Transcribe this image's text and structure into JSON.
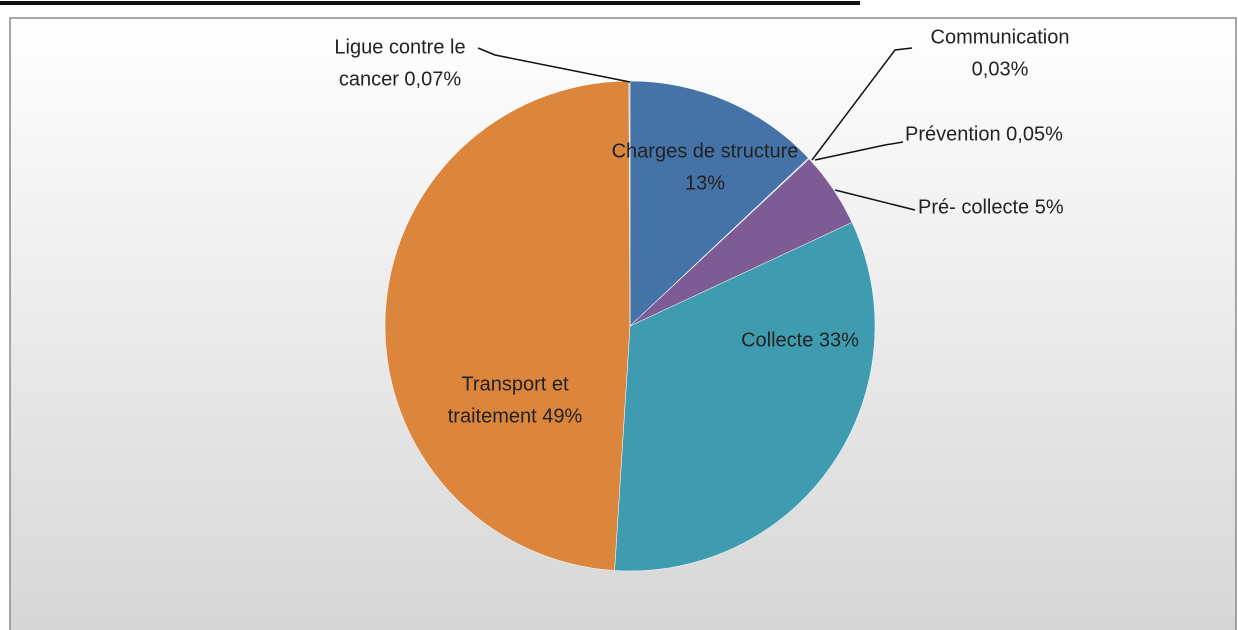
{
  "chart_data": {
    "type": "pie",
    "categories": [
      "Charges de structure",
      "Communication",
      "Prévention",
      "Pré- collecte",
      "Collecte",
      "Transport et traitement",
      "Ligue contre le cancer"
    ],
    "values": [
      13,
      0.03,
      0.05,
      5,
      33,
      49,
      0.07
    ],
    "value_labels": [
      "13%",
      "0,03%",
      "0,05%",
      "5%",
      "33%",
      "49%",
      "0,07%"
    ],
    "colors": [
      "#4572a7",
      "#8a9bb0",
      "#9a9aa8",
      "#7d5c96",
      "#3e9bb0",
      "#dc853d",
      "#b0b0b0"
    ]
  }
}
